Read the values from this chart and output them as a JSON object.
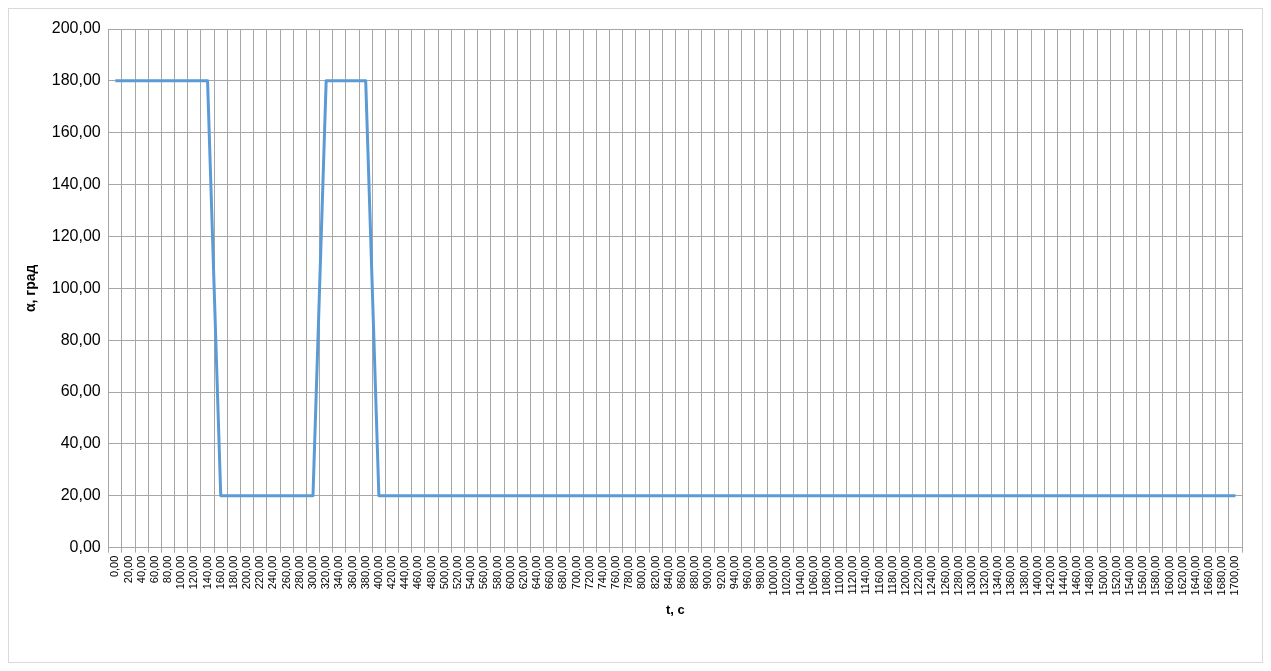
{
  "chart_data": {
    "type": "line",
    "xlabel": "t, с",
    "ylabel": "α, град",
    "categories": [
      "0,00",
      "20,00",
      "40,00",
      "60,00",
      "80,00",
      "100,00",
      "120,00",
      "140,00",
      "160,00",
      "180,00",
      "200,00",
      "220,00",
      "240,00",
      "260,00",
      "280,00",
      "300,00",
      "320,00",
      "340,00",
      "360,00",
      "380,00",
      "400,00",
      "420,00",
      "440,00",
      "460,00",
      "480,00",
      "500,00",
      "520,00",
      "540,00",
      "560,00",
      "580,00",
      "600,00",
      "620,00",
      "640,00",
      "660,00",
      "680,00",
      "700,00",
      "720,00",
      "740,00",
      "760,00",
      "780,00",
      "800,00",
      "820,00",
      "840,00",
      "860,00",
      "880,00",
      "900,00",
      "920,00",
      "940,00",
      "960,00",
      "980,00",
      "1000,00",
      "1020,00",
      "1040,00",
      "1060,00",
      "1080,00",
      "1100,00",
      "1120,00",
      "1140,00",
      "1160,00",
      "1180,00",
      "1200,00",
      "1220,00",
      "1240,00",
      "1260,00",
      "1280,00",
      "1300,00",
      "1320,00",
      "1340,00",
      "1360,00",
      "1380,00",
      "1400,00",
      "1420,00",
      "1440,00",
      "1460,00",
      "1480,00",
      "1500,00",
      "1520,00",
      "1540,00",
      "1560,00",
      "1580,00",
      "1600,00",
      "1620,00",
      "1640,00",
      "1660,00",
      "1680,00",
      "1700,00"
    ],
    "series": [
      {
        "color": "#5b9bd5",
        "values": [
          180,
          180,
          180,
          180,
          180,
          180,
          180,
          180,
          20,
          20,
          20,
          20,
          20,
          20,
          20,
          20,
          180,
          180,
          180,
          180,
          20,
          20,
          20,
          20,
          20,
          20,
          20,
          20,
          20,
          20,
          20,
          20,
          20,
          20,
          20,
          20,
          20,
          20,
          20,
          20,
          20,
          20,
          20,
          20,
          20,
          20,
          20,
          20,
          20,
          20,
          20,
          20,
          20,
          20,
          20,
          20,
          20,
          20,
          20,
          20,
          20,
          20,
          20,
          20,
          20,
          20,
          20,
          20,
          20,
          20,
          20,
          20,
          20,
          20,
          20,
          20,
          20,
          20,
          20,
          20,
          20,
          20,
          20,
          20,
          20,
          20
        ]
      }
    ],
    "ylim": [
      0,
      200
    ],
    "yticks": [
      {
        "value": 0,
        "label": "0,00"
      },
      {
        "value": 20,
        "label": "20,00"
      },
      {
        "value": 40,
        "label": "40,00"
      },
      {
        "value": 60,
        "label": "60,00"
      },
      {
        "value": 80,
        "label": "80,00"
      },
      {
        "value": 100,
        "label": "100,00"
      },
      {
        "value": 120,
        "label": "120,00"
      },
      {
        "value": 140,
        "label": "140,00"
      },
      {
        "value": 160,
        "label": "160,00"
      },
      {
        "value": 180,
        "label": "180,00"
      },
      {
        "value": 200,
        "label": "200,00"
      }
    ],
    "grid": true,
    "legend": false,
    "marker": "none",
    "line_style": "solid"
  }
}
